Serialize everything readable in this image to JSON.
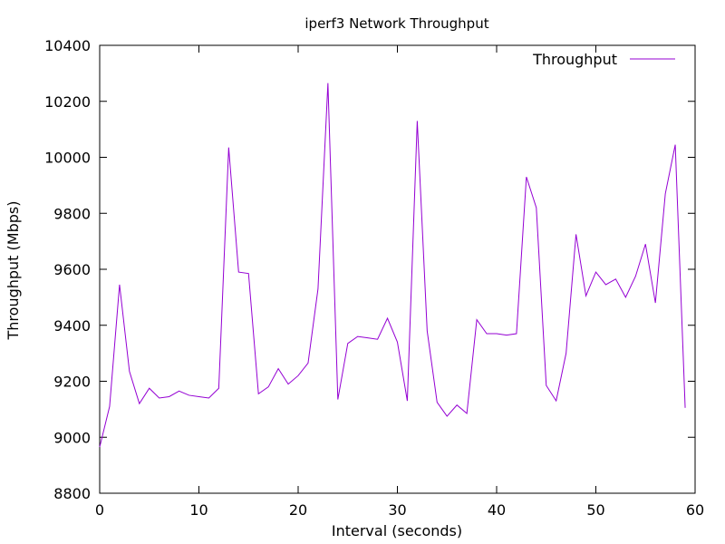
{
  "chart_data": {
    "type": "line",
    "title": "iperf3 Network Throughput",
    "xlabel": "Interval (seconds)",
    "ylabel": "Throughput (Mbps)",
    "xlim": [
      0,
      60
    ],
    "ylim": [
      8800,
      10400
    ],
    "xticks": [
      0,
      10,
      20,
      30,
      40,
      50,
      60
    ],
    "yticks": [
      8800,
      9000,
      9200,
      9400,
      9600,
      9800,
      10000,
      10200,
      10400
    ],
    "grid": false,
    "legend_position": "top-right",
    "series": [
      {
        "name": "Throughput",
        "color": "#9400d3",
        "x": [
          0,
          1,
          2,
          3,
          4,
          5,
          6,
          7,
          8,
          9,
          10,
          11,
          12,
          13,
          14,
          15,
          16,
          17,
          18,
          19,
          20,
          21,
          22,
          23,
          24,
          25,
          26,
          27,
          28,
          29,
          30,
          31,
          32,
          33,
          34,
          35,
          36,
          37,
          38,
          39,
          40,
          41,
          42,
          43,
          44,
          45,
          46,
          47,
          48,
          49,
          50,
          51,
          52,
          53,
          54,
          55,
          56,
          57,
          58,
          59
        ],
        "values": [
          8965,
          9110,
          9545,
          9235,
          9120,
          9175,
          9140,
          9145,
          9165,
          9150,
          9145,
          9140,
          9175,
          10035,
          9590,
          9585,
          9155,
          9180,
          9245,
          9190,
          9220,
          9265,
          9530,
          10265,
          9135,
          9335,
          9360,
          9355,
          9350,
          9425,
          9340,
          9130,
          10130,
          9380,
          9125,
          9075,
          9115,
          9085,
          9420,
          9370,
          9370,
          9365,
          9370,
          9930,
          9820,
          9185,
          9130,
          9300,
          9725,
          9505,
          9590,
          9545,
          9565,
          9500,
          9575,
          9690,
          9480,
          9870,
          10045,
          9105
        ]
      }
    ]
  }
}
